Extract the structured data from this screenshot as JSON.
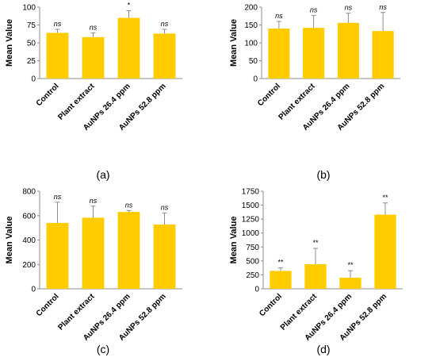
{
  "figure": {
    "panel_labels": [
      "(a)",
      "(b)",
      "(c)",
      "(d)"
    ],
    "bar_color": "#FFCC00",
    "axis_color": "#8C8C8C"
  },
  "chart_data": [
    {
      "type": "bar",
      "title": "",
      "xlabel": "",
      "ylabel": "Mean Value",
      "categories": [
        "Control",
        "Plant extract",
        "AuNPs 26.4 ppm",
        "AuNPs 52.8 ppm"
      ],
      "values": [
        64,
        58,
        85,
        63
      ],
      "errors": [
        5,
        6,
        10,
        6
      ],
      "annotations": [
        "ns",
        "ns",
        "*",
        "ns"
      ],
      "ylim": [
        0,
        100
      ],
      "yticks": [
        0,
        25,
        50,
        75,
        100
      ],
      "grid": false,
      "legend": "none"
    },
    {
      "type": "bar",
      "title": "",
      "xlabel": "",
      "ylabel": "Mean Value",
      "categories": [
        "Control",
        "Plant extract",
        "AuNPs 26.4 ppm",
        "AuNPs 52.8 ppm"
      ],
      "values": [
        140,
        142,
        156,
        133
      ],
      "errors": [
        20,
        35,
        27,
        52
      ],
      "annotations": [
        "ns",
        "ns",
        "ns",
        "ns"
      ],
      "ylim": [
        0,
        200
      ],
      "yticks": [
        0,
        50,
        100,
        150,
        200
      ],
      "grid": false,
      "legend": "none"
    },
    {
      "type": "bar",
      "title": "",
      "xlabel": "",
      "ylabel": "Mean Value",
      "categories": [
        "Control",
        "Plant extract",
        "AuNPs 26.4 ppm",
        "AuNPs 52.8 ppm"
      ],
      "values": [
        540,
        583,
        630,
        527
      ],
      "errors": [
        170,
        95,
        12,
        95
      ],
      "annotations": [
        "ns",
        "ns",
        "ns",
        "ns"
      ],
      "ylim": [
        0,
        800
      ],
      "yticks": [
        0,
        200,
        400,
        600,
        800
      ],
      "grid": false,
      "legend": "none"
    },
    {
      "type": "bar",
      "title": "",
      "xlabel": "",
      "ylabel": "Mean Value",
      "categories": [
        "Control",
        "Plant extract",
        "AuNPs 26.4 ppm",
        "AuNPs 52.8 ppm"
      ],
      "values": [
        320,
        440,
        200,
        1330
      ],
      "errors": [
        55,
        285,
        125,
        210
      ],
      "annotations": [
        "**",
        "**",
        "**",
        "**"
      ],
      "ylim": [
        0,
        1750
      ],
      "yticks": [
        0,
        250,
        500,
        750,
        1000,
        1250,
        1500,
        1750
      ],
      "grid": false,
      "legend": "none"
    }
  ]
}
